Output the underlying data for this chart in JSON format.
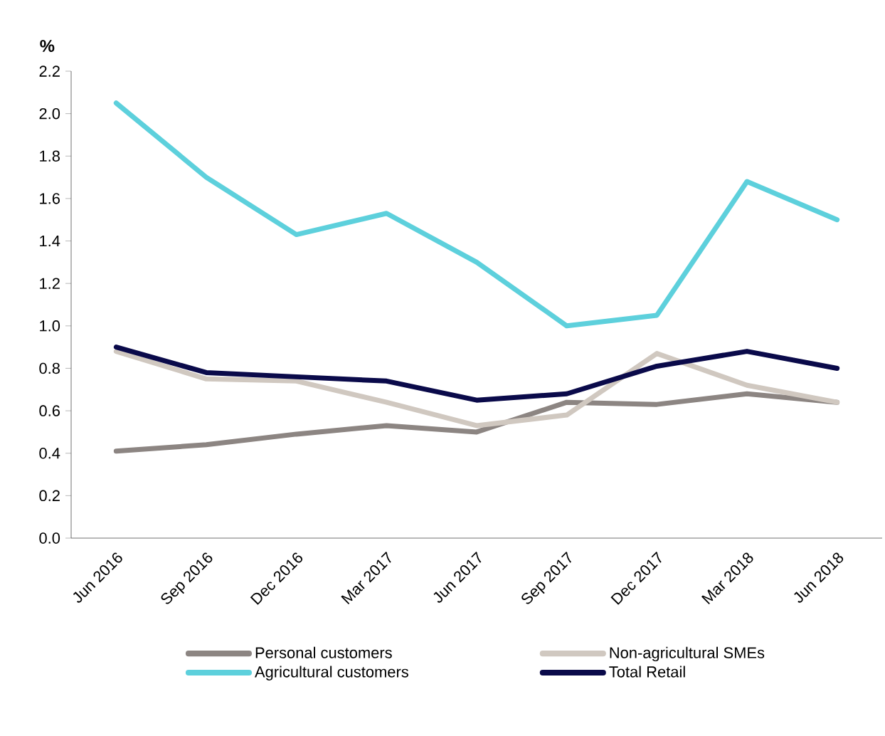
{
  "chart_data": {
    "type": "line",
    "ylabel": "%",
    "categories": [
      "Jun 2016",
      "Sep 2016",
      "Dec 2016",
      "Mar 2017",
      "Jun 2017",
      "Sep 2017",
      "Dec 2017",
      "Mar 2018",
      "Jun 2018"
    ],
    "ylim": [
      0,
      2.2
    ],
    "yticks": [
      {
        "value": 0,
        "label": "0.0"
      },
      0.2,
      0.4,
      0.6,
      0.8,
      {
        "value": 1,
        "label": "1.0"
      },
      1.2,
      1.4,
      1.6,
      1.8,
      {
        "value": 2,
        "label": "2.0"
      },
      2.2
    ],
    "series": [
      {
        "name": "Personal customers",
        "color": "#8c8582",
        "values": [
          0.41,
          0.44,
          0.49,
          0.53,
          0.5,
          0.64,
          0.63,
          0.68,
          0.64
        ]
      },
      {
        "name": "Non-agricultural SMEs",
        "color": "#d0c8c0",
        "values": [
          0.88,
          0.75,
          0.74,
          0.64,
          0.53,
          0.58,
          0.87,
          0.72,
          0.64
        ]
      },
      {
        "name": "Agricultural customers",
        "color": "#5dd0dc",
        "values": [
          2.05,
          1.7,
          1.43,
          1.53,
          1.3,
          1.0,
          1.05,
          1.68,
          1.5
        ]
      },
      {
        "name": "Total Retail",
        "color": "#0a0a4a",
        "values": [
          0.9,
          0.78,
          0.76,
          0.74,
          0.65,
          0.68,
          0.81,
          0.88,
          0.8
        ]
      }
    ],
    "legend": "bottom",
    "grid": false,
    "marker": "none",
    "line_style": "solid"
  }
}
